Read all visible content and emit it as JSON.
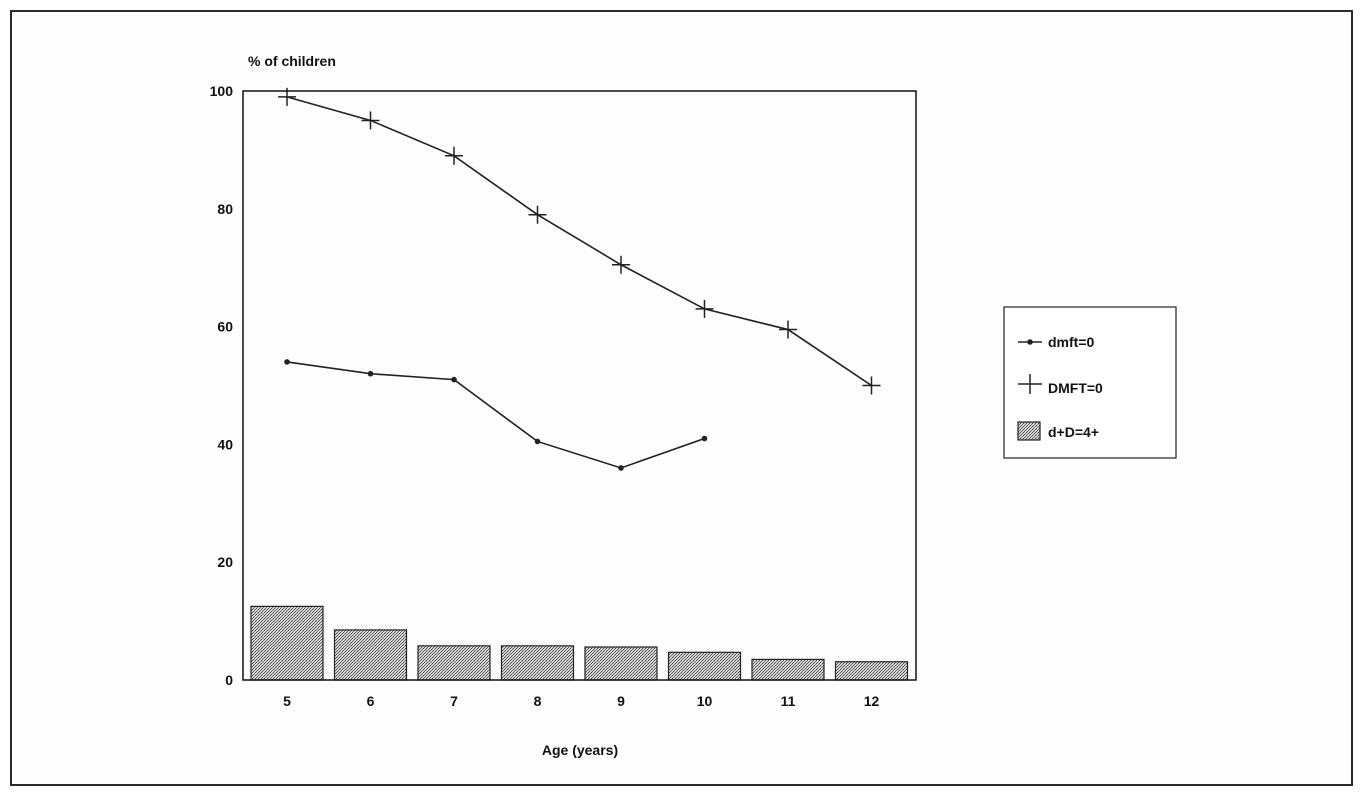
{
  "chart_data": {
    "type": "bar+line",
    "ylabel": "% of children",
    "xlabel": "Age (years)",
    "ylim": [
      0,
      100
    ],
    "y_ticks": [
      "0",
      "20",
      "40",
      "60",
      "80",
      "100"
    ],
    "categories": [
      "5",
      "6",
      "7",
      "8",
      "9",
      "10",
      "11",
      "12"
    ],
    "series": [
      {
        "name": "dmft=0",
        "kind": "line",
        "marker": "dot",
        "values": [
          54,
          52,
          51,
          40.5,
          36,
          41,
          null,
          null
        ]
      },
      {
        "name": "DMFT=0",
        "kind": "line",
        "marker": "plus",
        "values": [
          99,
          95,
          89,
          79,
          70.5,
          63,
          59.5,
          50
        ]
      },
      {
        "name": "d+D=4+",
        "kind": "bar",
        "pattern": "stipple",
        "values": [
          12.5,
          8.5,
          5.8,
          5.8,
          5.6,
          4.7,
          3.5,
          3.1
        ]
      }
    ],
    "legend_position": "right",
    "grid": false
  },
  "colors": {
    "line": "#222222",
    "bar_fill": "#b8b8b8",
    "axis": "#111111"
  }
}
